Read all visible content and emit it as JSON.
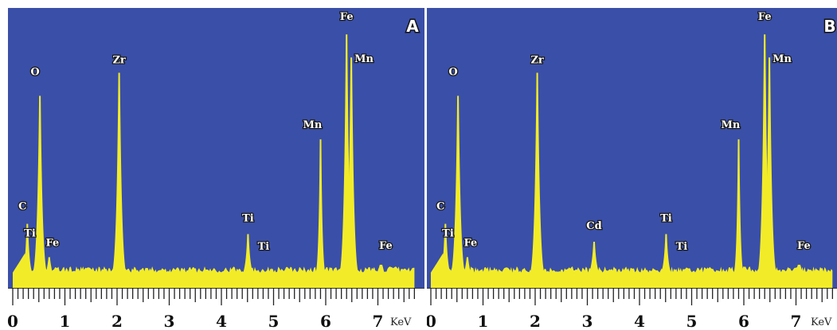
{
  "colors": {
    "background": "#3a4fa8",
    "spectrum": "#f2ec28",
    "label_fill": "#ffffff",
    "label_stroke": "#1a1a1a"
  },
  "chart_data": [
    {
      "type": "area",
      "panel_label": "A",
      "xlabel": "KeV",
      "xlim": [
        0,
        7.7
      ],
      "ylim": [
        0,
        100
      ],
      "x_ticks": [
        0,
        1,
        2,
        3,
        4,
        5,
        6,
        7
      ],
      "grid": false,
      "peaks": [
        {
          "element": "C",
          "energy": 0.28,
          "intensity": 25
        },
        {
          "element": "O",
          "energy": 0.52,
          "intensity": 75
        },
        {
          "element": "Ti",
          "energy": 0.45,
          "intensity": 12
        },
        {
          "element": "Fe",
          "energy": 0.7,
          "intensity": 12
        },
        {
          "element": "Zr",
          "energy": 2.04,
          "intensity": 84
        },
        {
          "element": "Ti",
          "energy": 4.51,
          "intensity": 21
        },
        {
          "element": "Ti",
          "energy": 4.93,
          "intensity": 5
        },
        {
          "element": "Mn",
          "energy": 5.9,
          "intensity": 58
        },
        {
          "element": "Fe",
          "energy": 6.4,
          "intensity": 99
        },
        {
          "element": "Mn",
          "energy": 6.49,
          "intensity": 90
        },
        {
          "element": "Fe",
          "energy": 7.06,
          "intensity": 9
        }
      ]
    },
    {
      "type": "area",
      "panel_label": "B",
      "xlabel": "KeV",
      "xlim": [
        0,
        7.7
      ],
      "ylim": [
        0,
        100
      ],
      "x_ticks": [
        0,
        1,
        2,
        3,
        4,
        5,
        6,
        7
      ],
      "grid": false,
      "peaks": [
        {
          "element": "C",
          "energy": 0.28,
          "intensity": 25
        },
        {
          "element": "O",
          "energy": 0.52,
          "intensity": 75
        },
        {
          "element": "Ti",
          "energy": 0.45,
          "intensity": 12
        },
        {
          "element": "Fe",
          "energy": 0.7,
          "intensity": 12
        },
        {
          "element": "Zr",
          "energy": 2.04,
          "intensity": 84
        },
        {
          "element": "Cd",
          "energy": 3.13,
          "intensity": 18
        },
        {
          "element": "Ti",
          "energy": 4.51,
          "intensity": 21
        },
        {
          "element": "Ti",
          "energy": 4.93,
          "intensity": 5
        },
        {
          "element": "Mn",
          "energy": 5.9,
          "intensity": 58
        },
        {
          "element": "Fe",
          "energy": 6.4,
          "intensity": 99
        },
        {
          "element": "Mn",
          "energy": 6.49,
          "intensity": 90
        },
        {
          "element": "Fe",
          "energy": 7.06,
          "intensity": 9
        }
      ]
    }
  ]
}
